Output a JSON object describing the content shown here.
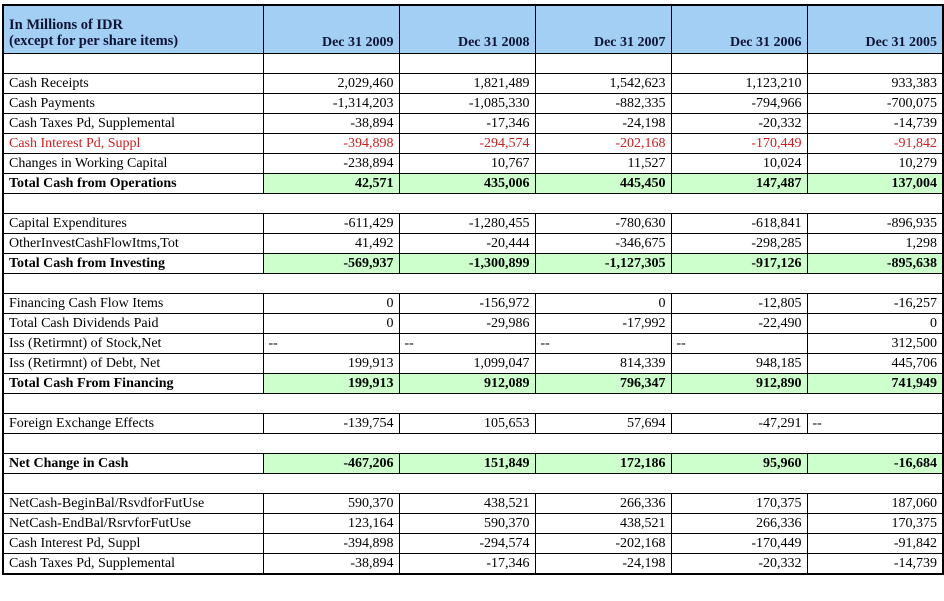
{
  "title_lines": [
    "In Millions of IDR",
    "(except for per share items)"
  ],
  "columns": [
    "Dec 31 2009",
    "Dec 31 2008",
    "Dec 31 2007",
    "Dec 31 2006",
    "Dec 31 2005"
  ],
  "colors": {
    "header_bg": "#a4cff4",
    "header_text": "#0f1435",
    "total_bg": "#ccffcc",
    "alert_text": "#cc2020",
    "border": "#000000"
  },
  "table": {
    "rows": [
      {
        "type": "spacer-cells",
        "label": "",
        "values": [
          "",
          "",
          "",
          "",
          ""
        ]
      },
      {
        "type": "data",
        "label": "Cash Receipts",
        "values": [
          "2,029,460",
          "1,821,489",
          "1,542,623",
          "1,123,210",
          "933,383"
        ]
      },
      {
        "type": "data",
        "label": "Cash Payments",
        "values": [
          "-1,314,203",
          "-1,085,330",
          "-882,335",
          "-794,966",
          "-700,075"
        ]
      },
      {
        "type": "data",
        "label": "Cash Taxes Pd, Supplemental",
        "values": [
          "-38,894",
          "-17,346",
          "-24,198",
          "-20,332",
          "-14,739"
        ]
      },
      {
        "type": "red",
        "label": "Cash Interest Pd, Suppl",
        "values": [
          "-394,898",
          "-294,574",
          "-202,168",
          "-170,449",
          "-91,842"
        ]
      },
      {
        "type": "data",
        "label": "Changes in Working Capital",
        "values": [
          "-238,894",
          "10,767",
          "11,527",
          "10,024",
          "10,279"
        ]
      },
      {
        "type": "total",
        "label": "Total Cash from Operations",
        "values": [
          "42,571",
          "435,006",
          "445,450",
          "147,487",
          "137,004"
        ]
      },
      {
        "type": "spacer"
      },
      {
        "type": "data",
        "label": "Capital Expenditures",
        "values": [
          "-611,429",
          "-1,280,455",
          "-780,630",
          "-618,841",
          "-896,935"
        ]
      },
      {
        "type": "data",
        "label": "OtherInvestCashFlowItms,Tot",
        "values": [
          "41,492",
          "-20,444",
          "-346,675",
          "-298,285",
          "1,298"
        ]
      },
      {
        "type": "total",
        "label": "Total Cash from Investing",
        "values": [
          "-569,937",
          "-1,300,899",
          "-1,127,305",
          "-917,126",
          "-895,638"
        ]
      },
      {
        "type": "spacer"
      },
      {
        "type": "data",
        "label": "Financing Cash Flow Items",
        "values": [
          "0",
          "-156,972",
          "0",
          "-12,805",
          "-16,257"
        ]
      },
      {
        "type": "data",
        "label": "Total Cash Dividends Paid",
        "values": [
          "0",
          "-29,986",
          "-17,992",
          "-22,490",
          "0"
        ]
      },
      {
        "type": "data",
        "label": "Iss (Retirmnt) of Stock,Net",
        "values": [
          "--",
          "--",
          "--",
          "--",
          "312,500"
        ]
      },
      {
        "type": "data",
        "label": "Iss (Retirmnt) of Debt, Net",
        "values": [
          "199,913",
          "1,099,047",
          "814,339",
          "948,185",
          "445,706"
        ]
      },
      {
        "type": "total",
        "label": "Total Cash From Financing",
        "values": [
          "199,913",
          "912,089",
          "796,347",
          "912,890",
          "741,949"
        ]
      },
      {
        "type": "spacer"
      },
      {
        "type": "data",
        "label": "Foreign Exchange Effects",
        "values": [
          "-139,754",
          "105,653",
          "57,694",
          "-47,291",
          "--"
        ]
      },
      {
        "type": "spacer"
      },
      {
        "type": "total",
        "label": "Net Change in Cash",
        "values": [
          "-467,206",
          "151,849",
          "172,186",
          "95,960",
          "-16,684"
        ]
      },
      {
        "type": "spacer"
      },
      {
        "type": "data",
        "label": "NetCash-BeginBal/RsvdforFutUse",
        "values": [
          "590,370",
          "438,521",
          "266,336",
          "170,375",
          "187,060"
        ]
      },
      {
        "type": "data",
        "label": "NetCash-EndBal/RsrvforFutUse",
        "values": [
          "123,164",
          "590,370",
          "438,521",
          "266,336",
          "170,375"
        ]
      },
      {
        "type": "data",
        "label": "Cash Interest Pd, Suppl",
        "values": [
          "-394,898",
          "-294,574",
          "-202,168",
          "-170,449",
          "-91,842"
        ]
      },
      {
        "type": "data",
        "label": "Cash Taxes Pd, Supplemental",
        "values": [
          "-38,894",
          "-17,346",
          "-24,198",
          "-20,332",
          "-14,739"
        ]
      }
    ]
  }
}
